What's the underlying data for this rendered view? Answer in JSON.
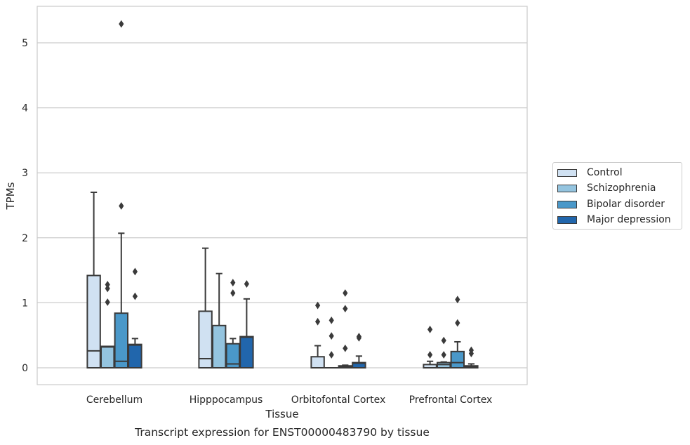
{
  "chart_data": {
    "type": "box",
    "title": "",
    "caption": "Transcript expression for ENST00000483790 by tissue",
    "xlabel": "Tissue",
    "ylabel": "TPMs",
    "ylim": [
      -0.25,
      5.55
    ],
    "yticks": [
      0,
      1,
      2,
      3,
      4,
      5
    ],
    "grid": "horizontal",
    "legend_position": "right",
    "categories": [
      "Cerebellum",
      "Hipppocampus",
      "Orbitofontal Cortex",
      "Prefrontal Cortex"
    ],
    "series": [
      {
        "name": "Control",
        "color": "#d0e1f2",
        "boxes": [
          {
            "whislo": 0,
            "q1": 0,
            "med": 0.26,
            "q3": 1.42,
            "whishi": 2.7,
            "fliers": []
          },
          {
            "whislo": 0,
            "q1": 0,
            "med": 0.14,
            "q3": 0.87,
            "whishi": 1.84,
            "fliers": []
          },
          {
            "whislo": 0,
            "q1": 0,
            "med": 0.0,
            "q3": 0.17,
            "whishi": 0.34,
            "fliers": [
              0.96,
              0.71
            ]
          },
          {
            "whislo": 0,
            "q1": 0,
            "med": 0.0,
            "q3": 0.05,
            "whishi": 0.1,
            "fliers": [
              0.59,
              0.2
            ]
          }
        ]
      },
      {
        "name": "Schizophrenia",
        "color": "#94c4df",
        "boxes": [
          {
            "whislo": 0,
            "q1": 0,
            "med": 0.32,
            "q3": 0.33,
            "whishi": 0.33,
            "fliers": [
              1.28,
              1.22,
              1.01
            ]
          },
          {
            "whislo": 0,
            "q1": 0,
            "med": 0.0,
            "q3": 0.65,
            "whishi": 1.45,
            "fliers": []
          },
          {
            "whislo": 0,
            "q1": 0,
            "med": 0.0,
            "q3": 0.0,
            "whishi": 0.0,
            "fliers": [
              0.73,
              0.49,
              0.2
            ]
          },
          {
            "whislo": 0,
            "q1": 0,
            "med": 0.05,
            "q3": 0.08,
            "whishi": 0.09,
            "fliers": [
              0.42,
              0.2
            ]
          }
        ]
      },
      {
        "name": "Bipolar disorder",
        "color": "#4a98c9",
        "boxes": [
          {
            "whislo": 0,
            "q1": 0,
            "med": 0.1,
            "q3": 0.84,
            "whishi": 2.07,
            "fliers": [
              5.29,
              2.49
            ]
          },
          {
            "whislo": 0,
            "q1": 0,
            "med": 0.06,
            "q3": 0.37,
            "whishi": 0.45,
            "fliers": [
              1.31,
              1.15
            ]
          },
          {
            "whislo": 0,
            "q1": 0,
            "med": 0.02,
            "q3": 0.03,
            "whishi": 0.04,
            "fliers": [
              1.15,
              0.91,
              0.3
            ]
          },
          {
            "whislo": 0,
            "q1": 0,
            "med": 0.08,
            "q3": 0.25,
            "whishi": 0.4,
            "fliers": [
              1.05,
              0.69
            ]
          }
        ]
      },
      {
        "name": "Major depression",
        "color": "#2166ac",
        "boxes": [
          {
            "whislo": 0,
            "q1": 0,
            "med": 0.35,
            "q3": 0.36,
            "whishi": 0.45,
            "fliers": [
              1.48,
              1.1
            ]
          },
          {
            "whislo": 0,
            "q1": 0,
            "med": 0.47,
            "q3": 0.48,
            "whishi": 1.06,
            "fliers": [
              1.29
            ]
          },
          {
            "whislo": 0,
            "q1": 0,
            "med": 0.07,
            "q3": 0.08,
            "whishi": 0.18,
            "fliers": [
              0.48,
              0.46
            ]
          },
          {
            "whislo": 0,
            "q1": 0,
            "med": 0.02,
            "q3": 0.03,
            "whishi": 0.06,
            "fliers": [
              0.27,
              0.22
            ]
          }
        ]
      }
    ]
  }
}
